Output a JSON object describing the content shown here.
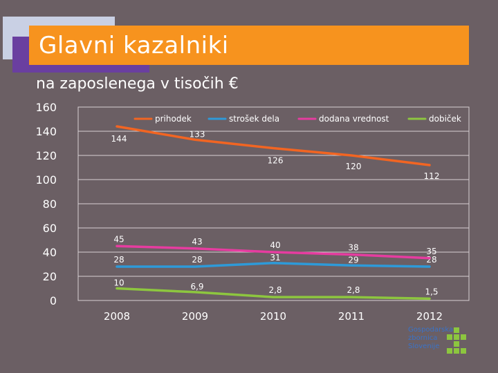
{
  "header": {
    "title": "Glavni kazalniki",
    "subtitle": "na zaposlenega v tisočih €"
  },
  "logo": {
    "lines": [
      "Gospodarska",
      "zbornica",
      "Slovenije"
    ]
  },
  "colors": {
    "background": "#6b5f64",
    "title_bar": "#f7931e",
    "accent_purple": "#6a3fa0",
    "accent_light": "#c9d0e4",
    "logo": "#3a73c8",
    "logo_squares": "#8cc63f"
  },
  "chart_data": {
    "type": "line",
    "title": "Glavni kazalniki",
    "subtitle": "na zaposlenega v tisočih €",
    "categories": [
      "2008",
      "2009",
      "2010",
      "2011",
      "2012"
    ],
    "ylim": [
      0,
      160
    ],
    "yticks": [
      "0",
      "20",
      "40",
      "60",
      "80",
      "100",
      "120",
      "140",
      "160"
    ],
    "grid": true,
    "legend_position": "top",
    "series": [
      {
        "name": "prihodek",
        "color": "#f26522",
        "values": [
          144,
          133,
          126,
          120,
          112
        ],
        "labels": [
          "144",
          "133",
          "126",
          "120",
          "112"
        ]
      },
      {
        "name": "strošek dela",
        "color": "#2e9ad8",
        "values": [
          28,
          28,
          31,
          29,
          28
        ],
        "labels": [
          "28",
          "28",
          "31",
          "29",
          "28"
        ]
      },
      {
        "name": "dodana vrednost",
        "color": "#e63ca0",
        "values": [
          45,
          43,
          40,
          38,
          35
        ],
        "labels": [
          "45",
          "43",
          "40",
          "38",
          "35"
        ]
      },
      {
        "name": "dobiček",
        "color": "#8dc63f",
        "values": [
          10,
          6.9,
          2.8,
          2.8,
          1.5
        ],
        "labels": [
          "10",
          "6,9",
          "2,8",
          "2,8",
          "1,5"
        ]
      }
    ]
  }
}
